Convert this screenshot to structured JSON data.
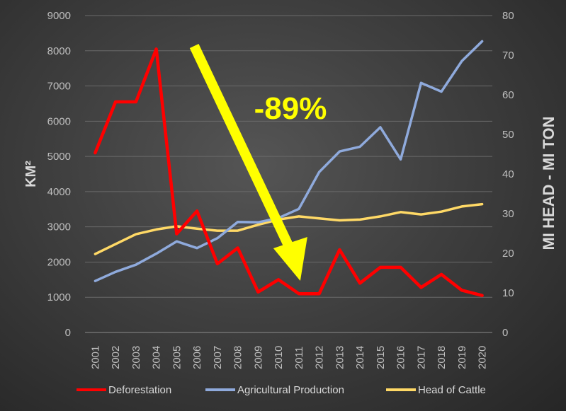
{
  "chart_data": {
    "type": "line",
    "categories": [
      "2001",
      "2002",
      "2003",
      "2004",
      "2005",
      "2006",
      "2007",
      "2008",
      "2009",
      "2010",
      "2011",
      "2012",
      "2013",
      "2014",
      "2015",
      "2016",
      "2017",
      "2018",
      "2019",
      "2020"
    ],
    "series": [
      {
        "name": "Deforestation",
        "axis": "left",
        "color": "#ff0000",
        "values": [
          5100,
          6550,
          6550,
          8050,
          2800,
          3450,
          1950,
          2400,
          1150,
          1500,
          1100,
          1100,
          2350,
          1400,
          1850,
          1850,
          1280,
          1650,
          1200,
          1050
        ]
      },
      {
        "name": "Agricultural Production",
        "axis": "right",
        "color": "#8faadc",
        "values": [
          13,
          15.3,
          17.1,
          19.9,
          23,
          21.3,
          23.8,
          27.9,
          27.8,
          28.9,
          31.2,
          40.5,
          45.7,
          46.9,
          51.8,
          43.7,
          63,
          60.8,
          68.5,
          73.5
        ]
      },
      {
        "name": "Head of Cattle",
        "axis": "right",
        "color": "#ffd966",
        "values": [
          19.8,
          22.3,
          24.8,
          26,
          26.8,
          26.2,
          25.7,
          25.7,
          27.2,
          28.5,
          29.3,
          28.8,
          28.3,
          28.5,
          29.3,
          30.4,
          29.8,
          30.5,
          31.8,
          32.4
        ]
      }
    ],
    "ylabel": "KM²",
    "y2label": "MI HEAD - MI TON",
    "ylim": [
      0,
      9000
    ],
    "y2lim": [
      0,
      80
    ],
    "yticks": [
      "0",
      "1000",
      "2000",
      "3000",
      "4000",
      "5000",
      "6000",
      "7000",
      "8000",
      "9000"
    ],
    "y2ticks": [
      "0",
      "10",
      "20",
      "30",
      "40",
      "50",
      "60",
      "70",
      "80"
    ],
    "legend_position": "bottom",
    "annotation": {
      "text": "-89%",
      "color": "#ffff00",
      "arrow_from_year": "2006",
      "arrow_to_year": "2011"
    }
  }
}
